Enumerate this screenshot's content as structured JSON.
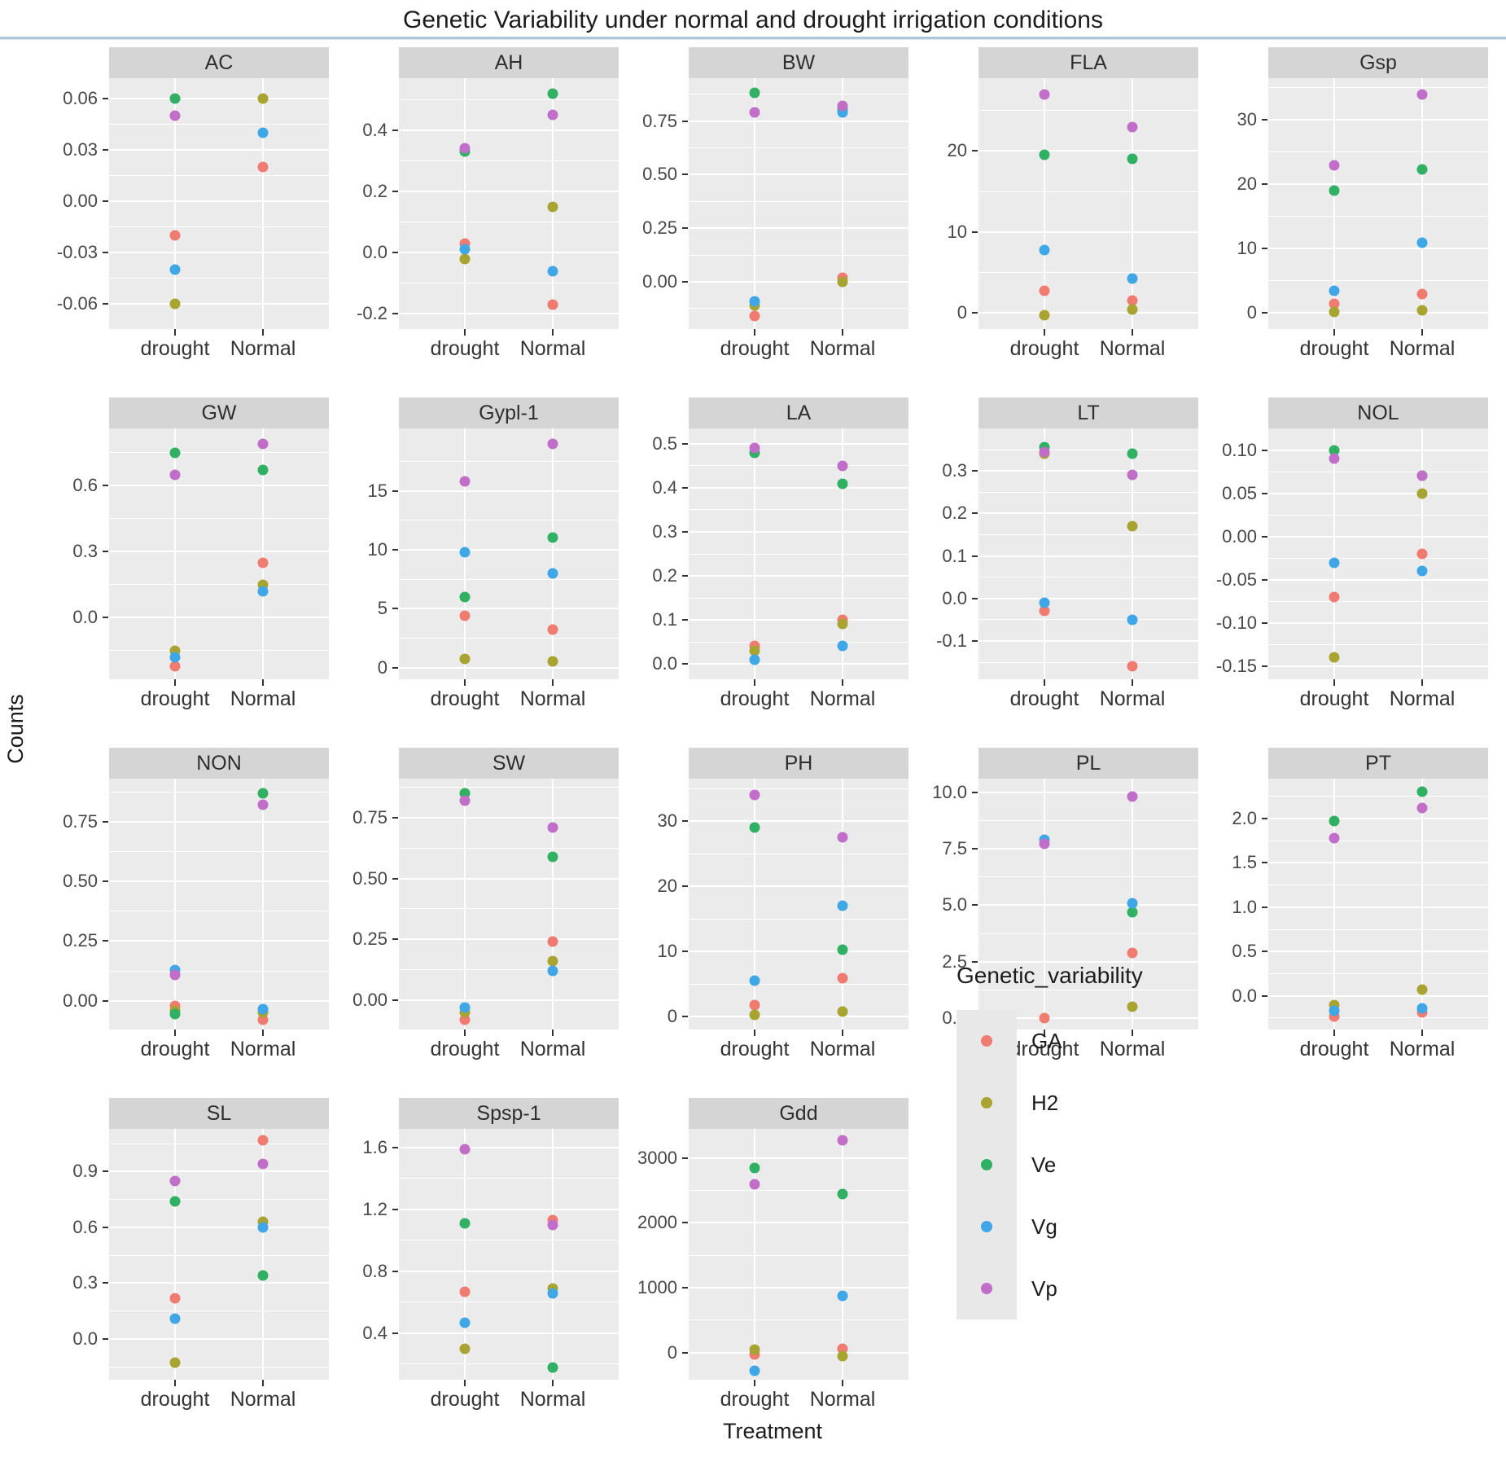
{
  "title": "Genetic Variability under normal and drought irrigation conditions",
  "axis": {
    "x_label": "Treatment",
    "y_label": "Counts",
    "categories": [
      "drought",
      "Normal"
    ]
  },
  "legend": {
    "title": "Genetic_variability",
    "series": [
      {
        "name": "GA",
        "color": "#f07b70"
      },
      {
        "name": "H2",
        "color": "#a9a432"
      },
      {
        "name": "Ve",
        "color": "#2fb062"
      },
      {
        "name": "Vg",
        "color": "#3fa7e6"
      },
      {
        "name": "Vp",
        "color": "#c06ec8"
      }
    ]
  },
  "chart_data": {
    "type": "scatter",
    "x_categories": [
      "drought",
      "Normal"
    ],
    "series_names": [
      "GA",
      "H2",
      "Ve",
      "Vg",
      "Vp"
    ],
    "legend_position": "bottom-right",
    "grid": true,
    "facets": [
      {
        "name": "AC",
        "ylim": [
          -0.075,
          0.072
        ],
        "ticks": [
          {
            "label": "0.06",
            "v": 0.06
          },
          {
            "label": "0.03",
            "v": 0.03
          },
          {
            "label": "0.00",
            "v": 0.0
          },
          {
            "label": "-0.03",
            "v": -0.03
          },
          {
            "label": "-0.06",
            "v": -0.06
          }
        ],
        "points": {
          "drought": {
            "GA": -0.02,
            "H2": -0.06,
            "Ve": 0.06,
            "Vg": -0.04,
            "Vp": 0.05
          },
          "Normal": {
            "GA": 0.02,
            "H2": 0.06,
            "Ve": null,
            "Vg": 0.04,
            "Vp": null
          }
        }
      },
      {
        "name": "AH",
        "ylim": [
          -0.25,
          0.57
        ],
        "ticks": [
          {
            "label": "0.4",
            "v": 0.4
          },
          {
            "label": "0.2",
            "v": 0.2
          },
          {
            "label": "0.0",
            "v": 0.0
          },
          {
            "label": "-0.2",
            "v": -0.2
          }
        ],
        "points": {
          "drought": {
            "GA": 0.03,
            "H2": -0.02,
            "Ve": 0.33,
            "Vg": 0.01,
            "Vp": 0.34
          },
          "Normal": {
            "GA": -0.17,
            "H2": 0.15,
            "Ve": 0.52,
            "Vg": -0.06,
            "Vp": 0.45
          }
        }
      },
      {
        "name": "BW",
        "ylim": [
          -0.22,
          0.95
        ],
        "ticks": [
          {
            "label": "0.75",
            "v": 0.75
          },
          {
            "label": "0.50",
            "v": 0.5
          },
          {
            "label": "0.25",
            "v": 0.25
          },
          {
            "label": "0.00",
            "v": 0.0
          }
        ],
        "points": {
          "drought": {
            "GA": -0.16,
            "H2": -0.11,
            "Ve": 0.88,
            "Vg": -0.09,
            "Vp": 0.79
          },
          "Normal": {
            "GA": 0.02,
            "H2": 0.0,
            "Ve": 0.8,
            "Vg": 0.79,
            "Vp": 0.82
          }
        }
      },
      {
        "name": "FLA",
        "ylim": [
          -2,
          29
        ],
        "ticks": [
          {
            "label": "20",
            "v": 20
          },
          {
            "label": "10",
            "v": 10
          },
          {
            "label": "0",
            "v": 0
          }
        ],
        "points": {
          "drought": {
            "GA": 2.7,
            "H2": -0.3,
            "Ve": 19.5,
            "Vg": 7.8,
            "Vp": 27
          },
          "Normal": {
            "GA": 1.5,
            "H2": 0.4,
            "Ve": 19,
            "Vg": 4.2,
            "Vp": 23
          }
        }
      },
      {
        "name": "Gsp",
        "ylim": [
          -2.5,
          36.5
        ],
        "ticks": [
          {
            "label": "30",
            "v": 30
          },
          {
            "label": "20",
            "v": 20
          },
          {
            "label": "10",
            "v": 10
          },
          {
            "label": "0",
            "v": 0
          }
        ],
        "points": {
          "drought": {
            "GA": 1.4,
            "H2": 0.2,
            "Ve": 19,
            "Vg": 3.5,
            "Vp": 23
          },
          "Normal": {
            "GA": 3.0,
            "H2": 0.4,
            "Ve": 22.3,
            "Vg": 10.9,
            "Vp": 34
          }
        }
      },
      {
        "name": "GW",
        "ylim": [
          -0.28,
          0.86
        ],
        "ticks": [
          {
            "label": "0.6",
            "v": 0.6
          },
          {
            "label": "0.3",
            "v": 0.3
          },
          {
            "label": "0.0",
            "v": 0.0
          }
        ],
        "points": {
          "drought": {
            "GA": -0.22,
            "H2": -0.15,
            "Ve": 0.75,
            "Vg": -0.18,
            "Vp": 0.65
          },
          "Normal": {
            "GA": 0.25,
            "H2": 0.15,
            "Ve": 0.67,
            "Vg": 0.12,
            "Vp": 0.79
          }
        }
      },
      {
        "name": "Gypl-1",
        "ylim": [
          -1,
          20.3
        ],
        "ticks": [
          {
            "label": "15",
            "v": 15
          },
          {
            "label": "10",
            "v": 10
          },
          {
            "label": "5",
            "v": 5
          },
          {
            "label": "0",
            "v": 0
          }
        ],
        "points": {
          "drought": {
            "GA": 4.4,
            "H2": 0.7,
            "Ve": 6.0,
            "Vg": 9.8,
            "Vp": 15.8
          },
          "Normal": {
            "GA": 3.2,
            "H2": 0.5,
            "Ve": 11.0,
            "Vg": 8.0,
            "Vp": 19.0
          }
        }
      },
      {
        "name": "LA",
        "ylim": [
          -0.035,
          0.535
        ],
        "ticks": [
          {
            "label": "0.5",
            "v": 0.5
          },
          {
            "label": "0.4",
            "v": 0.4
          },
          {
            "label": "0.3",
            "v": 0.3
          },
          {
            "label": "0.2",
            "v": 0.2
          },
          {
            "label": "0.1",
            "v": 0.1
          },
          {
            "label": "0.0",
            "v": 0.0
          }
        ],
        "points": {
          "drought": {
            "GA": 0.04,
            "H2": 0.03,
            "Ve": 0.48,
            "Vg": 0.01,
            "Vp": 0.49
          },
          "Normal": {
            "GA": 0.1,
            "H2": 0.09,
            "Ve": 0.41,
            "Vg": 0.04,
            "Vp": 0.45
          }
        }
      },
      {
        "name": "LT",
        "ylim": [
          -0.19,
          0.4
        ],
        "ticks": [
          {
            "label": "0.3",
            "v": 0.3
          },
          {
            "label": "0.2",
            "v": 0.2
          },
          {
            "label": "0.1",
            "v": 0.1
          },
          {
            "label": "0.0",
            "v": 0.0
          },
          {
            "label": "-0.1",
            "v": -0.1
          }
        ],
        "points": {
          "drought": {
            "GA": -0.03,
            "H2": 0.34,
            "Ve": 0.355,
            "Vg": -0.01,
            "Vp": 0.345
          },
          "Normal": {
            "GA": -0.16,
            "H2": 0.17,
            "Ve": 0.34,
            "Vg": -0.05,
            "Vp": 0.29
          }
        }
      },
      {
        "name": "NOL",
        "ylim": [
          -0.165,
          0.125
        ],
        "ticks": [
          {
            "label": "0.10",
            "v": 0.1
          },
          {
            "label": "0.05",
            "v": 0.05
          },
          {
            "label": "0.00",
            "v": 0.0
          },
          {
            "label": "-0.05",
            "v": -0.05
          },
          {
            "label": "-0.10",
            "v": -0.1
          },
          {
            "label": "-0.15",
            "v": -0.15
          }
        ],
        "points": {
          "drought": {
            "GA": -0.07,
            "H2": -0.14,
            "Ve": 0.1,
            "Vg": -0.03,
            "Vp": 0.09
          },
          "Normal": {
            "GA": -0.02,
            "H2": 0.05,
            "Ve": 0.07,
            "Vg": -0.04,
            "Vp": 0.07
          }
        }
      },
      {
        "name": "NON",
        "ylim": [
          -0.12,
          0.93
        ],
        "ticks": [
          {
            "label": "0.75",
            "v": 0.75
          },
          {
            "label": "0.50",
            "v": 0.5
          },
          {
            "label": "0.25",
            "v": 0.25
          },
          {
            "label": "0.00",
            "v": 0.0
          }
        ],
        "points": {
          "drought": {
            "GA": -0.02,
            "H2": -0.04,
            "Ve": -0.055,
            "Vg": 0.13,
            "Vp": 0.11
          },
          "Normal": {
            "GA": -0.08,
            "H2": -0.05,
            "Ve": 0.87,
            "Vg": -0.035,
            "Vp": 0.82
          }
        }
      },
      {
        "name": "SW",
        "ylim": [
          -0.12,
          0.91
        ],
        "ticks": [
          {
            "label": "0.75",
            "v": 0.75
          },
          {
            "label": "0.50",
            "v": 0.5
          },
          {
            "label": "0.25",
            "v": 0.25
          },
          {
            "label": "0.00",
            "v": 0.0
          }
        ],
        "points": {
          "drought": {
            "GA": -0.08,
            "H2": -0.05,
            "Ve": 0.85,
            "Vg": -0.03,
            "Vp": 0.82
          },
          "Normal": {
            "GA": 0.24,
            "H2": 0.16,
            "Ve": 0.59,
            "Vg": 0.12,
            "Vp": 0.71
          }
        }
      },
      {
        "name": "PH",
        "ylim": [
          -2,
          36.5
        ],
        "ticks": [
          {
            "label": "30",
            "v": 30
          },
          {
            "label": "20",
            "v": 20
          },
          {
            "label": "10",
            "v": 10
          },
          {
            "label": "0",
            "v": 0
          }
        ],
        "points": {
          "drought": {
            "GA": 1.7,
            "H2": 0.2,
            "Ve": 29,
            "Vg": 5.5,
            "Vp": 34
          },
          "Normal": {
            "GA": 5.9,
            "H2": 0.7,
            "Ve": 10.3,
            "Vg": 17,
            "Vp": 27.5
          }
        }
      },
      {
        "name": "PL",
        "ylim": [
          -0.5,
          10.6
        ],
        "ticks": [
          {
            "label": "10.0",
            "v": 10.0
          },
          {
            "label": "7.5",
            "v": 7.5
          },
          {
            "label": "5.0",
            "v": 5.0
          },
          {
            "label": "2.5",
            "v": 2.5
          },
          {
            "label": "0.0",
            "v": 0.0
          }
        ],
        "points": {
          "drought": {
            "GA": 0.0,
            "H2": null,
            "Ve": null,
            "Vg": 7.9,
            "Vp": 7.7
          },
          "Normal": {
            "GA": 2.9,
            "H2": 0.5,
            "Ve": 4.7,
            "Vg": 5.1,
            "Vp": 9.8
          }
        }
      },
      {
        "name": "PT",
        "ylim": [
          -0.38,
          2.45
        ],
        "ticks": [
          {
            "label": "2.0",
            "v": 2.0
          },
          {
            "label": "1.5",
            "v": 1.5
          },
          {
            "label": "1.0",
            "v": 1.0
          },
          {
            "label": "0.5",
            "v": 0.5
          },
          {
            "label": "0.0",
            "v": 0.0
          }
        ],
        "points": {
          "drought": {
            "GA": -0.23,
            "H2": -0.1,
            "Ve": 1.97,
            "Vg": -0.17,
            "Vp": 1.78
          },
          "Normal": {
            "GA": -0.19,
            "H2": 0.07,
            "Ve": 2.3,
            "Vg": -0.14,
            "Vp": 2.12
          }
        }
      },
      {
        "name": "SL",
        "ylim": [
          -0.22,
          1.13
        ],
        "ticks": [
          {
            "label": "0.9",
            "v": 0.9
          },
          {
            "label": "0.6",
            "v": 0.6
          },
          {
            "label": "0.3",
            "v": 0.3
          },
          {
            "label": "0.0",
            "v": 0.0
          }
        ],
        "points": {
          "drought": {
            "GA": 0.22,
            "H2": -0.13,
            "Ve": 0.74,
            "Vg": 0.11,
            "Vp": 0.85
          },
          "Normal": {
            "GA": 1.07,
            "H2": 0.63,
            "Ve": 0.34,
            "Vg": 0.6,
            "Vp": 0.94
          }
        }
      },
      {
        "name": "Spsp-1",
        "ylim": [
          0.1,
          1.72
        ],
        "ticks": [
          {
            "label": "1.6",
            "v": 1.6
          },
          {
            "label": "1.2",
            "v": 1.2
          },
          {
            "label": "0.8",
            "v": 0.8
          },
          {
            "label": "0.4",
            "v": 0.4
          }
        ],
        "points": {
          "drought": {
            "GA": 0.67,
            "H2": 0.3,
            "Ve": 1.11,
            "Vg": 0.47,
            "Vp": 1.59
          },
          "Normal": {
            "GA": 1.13,
            "H2": 0.69,
            "Ve": 0.18,
            "Vg": 0.66,
            "Vp": 1.1
          }
        }
      },
      {
        "name": "Gdd",
        "ylim": [
          -420,
          3450
        ],
        "ticks": [
          {
            "label": "3000",
            "v": 3000
          },
          {
            "label": "2000",
            "v": 2000
          },
          {
            "label": "1000",
            "v": 1000
          },
          {
            "label": "0",
            "v": 0
          }
        ],
        "points": {
          "drought": {
            "GA": -30,
            "H2": 50,
            "Ve": 2850,
            "Vg": -280,
            "Vp": 2600
          },
          "Normal": {
            "GA": 60,
            "H2": -60,
            "Ve": 2450,
            "Vg": 870,
            "Vp": 3270
          }
        }
      }
    ]
  }
}
